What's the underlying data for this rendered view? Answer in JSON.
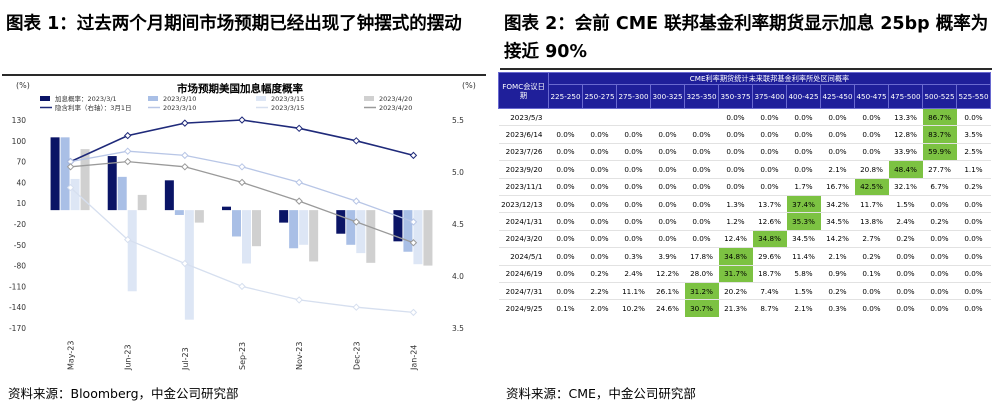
{
  "left": {
    "fig_title": "图表 1：过去两个月期间市场预期已经出现了钟摆式的摆动",
    "source": "资料来源：Bloomberg，中金公司研究部"
  },
  "right": {
    "fig_title": "图表 2：会前 CME 联邦基金利率期货显示加息 25bp 概率为接近 90%",
    "source": "资料来源：CME，中金公司研究部",
    "table": {
      "super_header": "CME利率期货统计未来联邦基金利率所处区间概率",
      "corner_header": "FOMC会议日期",
      "columns": [
        "225-250",
        "250-275",
        "275-300",
        "300-325",
        "325-350",
        "350-375",
        "375-400",
        "400-425",
        "425-450",
        "450-475",
        "475-500",
        "500-525",
        "525-550"
      ],
      "rows": [
        {
          "date": "2023/5/3",
          "cells": [
            "",
            "",
            "",
            "",
            "",
            "0.0%",
            "0.0%",
            "0.0%",
            "0.0%",
            "0.0%",
            "13.3%",
            "86.7%",
            "0.0%"
          ],
          "hl": 11
        },
        {
          "date": "2023/6/14",
          "cells": [
            "0.0%",
            "0.0%",
            "0.0%",
            "0.0%",
            "0.0%",
            "0.0%",
            "0.0%",
            "0.0%",
            "0.0%",
            "0.0%",
            "12.8%",
            "83.7%",
            "3.5%"
          ],
          "hl": 11
        },
        {
          "date": "2023/7/26",
          "cells": [
            "0.0%",
            "0.0%",
            "0.0%",
            "0.0%",
            "0.0%",
            "0.0%",
            "0.0%",
            "0.0%",
            "0.0%",
            "0.0%",
            "33.9%",
            "59.9%",
            "2.5%"
          ],
          "hl": 11
        },
        {
          "date": "2023/9/20",
          "cells": [
            "0.0%",
            "0.0%",
            "0.0%",
            "0.0%",
            "0.0%",
            "0.0%",
            "0.0%",
            "0.0%",
            "2.1%",
            "20.8%",
            "48.4%",
            "27.7%",
            "1.1%"
          ],
          "hl": 10
        },
        {
          "date": "2023/11/1",
          "cells": [
            "0.0%",
            "0.0%",
            "0.0%",
            "0.0%",
            "0.0%",
            "0.0%",
            "0.0%",
            "1.7%",
            "16.7%",
            "42.5%",
            "32.1%",
            "6.7%",
            "0.2%"
          ],
          "hl": 9
        },
        {
          "date": "2023/12/13",
          "cells": [
            "0.0%",
            "0.0%",
            "0.0%",
            "0.0%",
            "0.0%",
            "1.3%",
            "13.7%",
            "37.4%",
            "34.2%",
            "11.7%",
            "1.5%",
            "0.0%",
            "0.0%"
          ],
          "hl": 7
        },
        {
          "date": "2024/1/31",
          "cells": [
            "0.0%",
            "0.0%",
            "0.0%",
            "0.0%",
            "0.0%",
            "1.2%",
            "12.6%",
            "35.3%",
            "34.5%",
            "13.8%",
            "2.4%",
            "0.2%",
            "0.0%"
          ],
          "hl": 7
        },
        {
          "date": "2024/3/20",
          "cells": [
            "0.0%",
            "0.0%",
            "0.0%",
            "0.0%",
            "0.0%",
            "12.4%",
            "34.8%",
            "34.5%",
            "14.2%",
            "2.7%",
            "0.2%",
            "0.0%",
            "0.0%"
          ],
          "hl": 6
        },
        {
          "date": "2024/5/1",
          "cells": [
            "0.0%",
            "0.0%",
            "0.3%",
            "3.9%",
            "17.8%",
            "34.8%",
            "29.6%",
            "11.4%",
            "2.1%",
            "0.2%",
            "0.0%",
            "0.0%",
            "0.0%"
          ],
          "hl": 5
        },
        {
          "date": "2024/6/19",
          "cells": [
            "0.0%",
            "0.2%",
            "2.4%",
            "12.2%",
            "28.0%",
            "31.7%",
            "18.7%",
            "5.8%",
            "0.9%",
            "0.1%",
            "0.0%",
            "0.0%",
            "0.0%"
          ],
          "hl": 5
        },
        {
          "date": "2024/7/31",
          "cells": [
            "0.0%",
            "2.2%",
            "11.1%",
            "26.1%",
            "31.2%",
            "20.2%",
            "7.4%",
            "1.5%",
            "0.2%",
            "0.0%",
            "0.0%",
            "0.0%",
            "0.0%"
          ],
          "hl": 4
        },
        {
          "date": "2024/9/25",
          "cells": [
            "0.1%",
            "2.0%",
            "10.2%",
            "24.6%",
            "30.7%",
            "21.3%",
            "8.7%",
            "2.1%",
            "0.3%",
            "0.0%",
            "0.0%",
            "0.0%",
            "0.0%"
          ],
          "hl": 4
        }
      ]
    }
  },
  "colors": {
    "dark_navy": "#0a1466",
    "mid_blue": "#a9bfe6",
    "light_blue": "#dde6f5",
    "mid_gray": "#d0d0d0",
    "light_gray": "#e4e4e4",
    "table_header": "#1f1f9a",
    "highlight_green": "#7cc242"
  },
  "chart_data": {
    "type": "bar",
    "title": "市场预期美国加息幅度概率",
    "ylabel": "(%)",
    "y2label": "(%)",
    "ylim": [
      -170,
      130
    ],
    "yticks": [
      130,
      100,
      70,
      40,
      10,
      -20,
      -50,
      -80,
      -110,
      -140,
      -170
    ],
    "y2lim": [
      3.5,
      5.5
    ],
    "y2ticks": [
      5.5,
      5.0,
      4.5,
      4.0,
      3.5
    ],
    "categories": [
      "May-23",
      "Jun-23",
      "Jul-23",
      "Sep-23",
      "Nov-23",
      "Dec-23",
      "Jan-24"
    ],
    "bar_series": [
      {
        "name": "加息概率：2023/3/1",
        "color": "#0a1466",
        "values": [
          105,
          78,
          43,
          5,
          -18,
          -34,
          -45
        ]
      },
      {
        "name": "2023/3/10",
        "color": "#a9bfe6",
        "values": [
          105,
          48,
          -7,
          -38,
          -55,
          -50,
          -60
        ]
      },
      {
        "name": "2023/3/15",
        "color": "#dde6f5",
        "values": [
          45,
          -117,
          -158,
          -77,
          -50,
          -62,
          -78
        ]
      },
      {
        "name": "2023/4/20",
        "color": "#d0d0d0",
        "values": [
          88,
          22,
          -18,
          -52,
          -74,
          -76,
          -80
        ]
      }
    ],
    "line_series": [
      {
        "name": "隐含利率（右轴）：3月1日",
        "color": "#1f2a7a",
        "marker": "diamond",
        "values": [
          5.1,
          5.35,
          5.47,
          5.5,
          5.42,
          5.3,
          5.16
        ]
      },
      {
        "name": "2023/3/10",
        "color": "#b8c6e6",
        "marker": "diamond",
        "values": [
          5.1,
          5.2,
          5.16,
          5.05,
          4.9,
          4.72,
          4.52
        ]
      },
      {
        "name": "2023/3/15",
        "color": "#d6dfef",
        "marker": "diamond",
        "values": [
          4.85,
          4.35,
          4.12,
          3.9,
          3.77,
          3.7,
          3.65
        ]
      },
      {
        "name": "2023/4/20",
        "color": "#9a9a9a",
        "marker": "diamond",
        "values": [
          5.05,
          5.1,
          5.05,
          4.9,
          4.72,
          4.52,
          4.32
        ]
      }
    ],
    "legend": {
      "placement": "top",
      "entries": [
        "加息概率：2023/3/1",
        "2023/3/10",
        "2023/3/15",
        "2023/4/20",
        "隐含利率（右轴）：3月1日",
        "2023/3/10",
        "2023/3/15",
        "2023/4/20"
      ]
    }
  }
}
